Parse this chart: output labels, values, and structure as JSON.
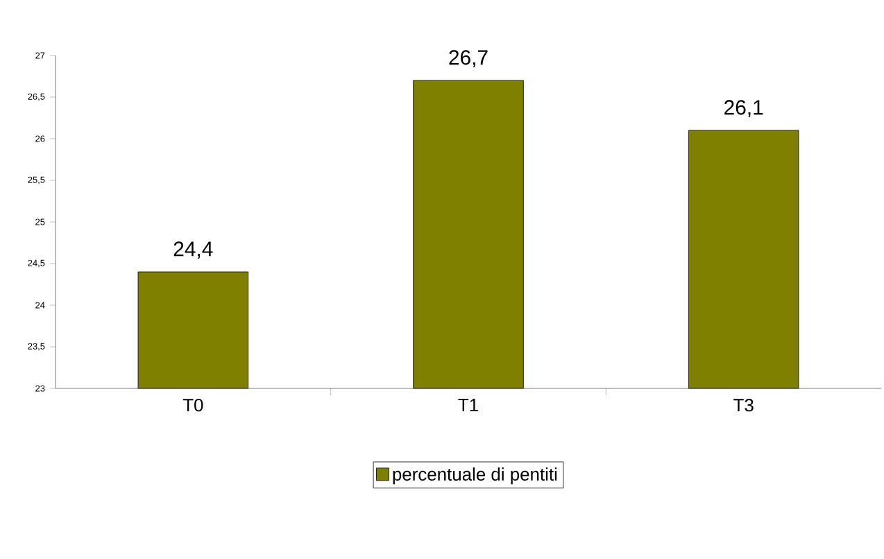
{
  "chart_data": {
    "type": "bar",
    "categories": [
      "T0",
      "T1",
      "T3"
    ],
    "series": [
      {
        "name": "percentuale di pentiti",
        "color": "#808000",
        "values": [
          24.4,
          26.7,
          26.1
        ],
        "value_labels": [
          "24,4",
          "26,7",
          "26,1"
        ]
      }
    ],
    "ylim": [
      23,
      27
    ],
    "yticks": [
      23,
      {
        "value": 23.5,
        "label": "23,5"
      },
      24,
      {
        "value": 24.5,
        "label": "24,5"
      },
      25,
      {
        "value": 25.5,
        "label": "25,5"
      },
      26,
      {
        "value": 26.5,
        "label": "26,5"
      },
      27
    ],
    "legend": "bottom",
    "grid": false
  }
}
